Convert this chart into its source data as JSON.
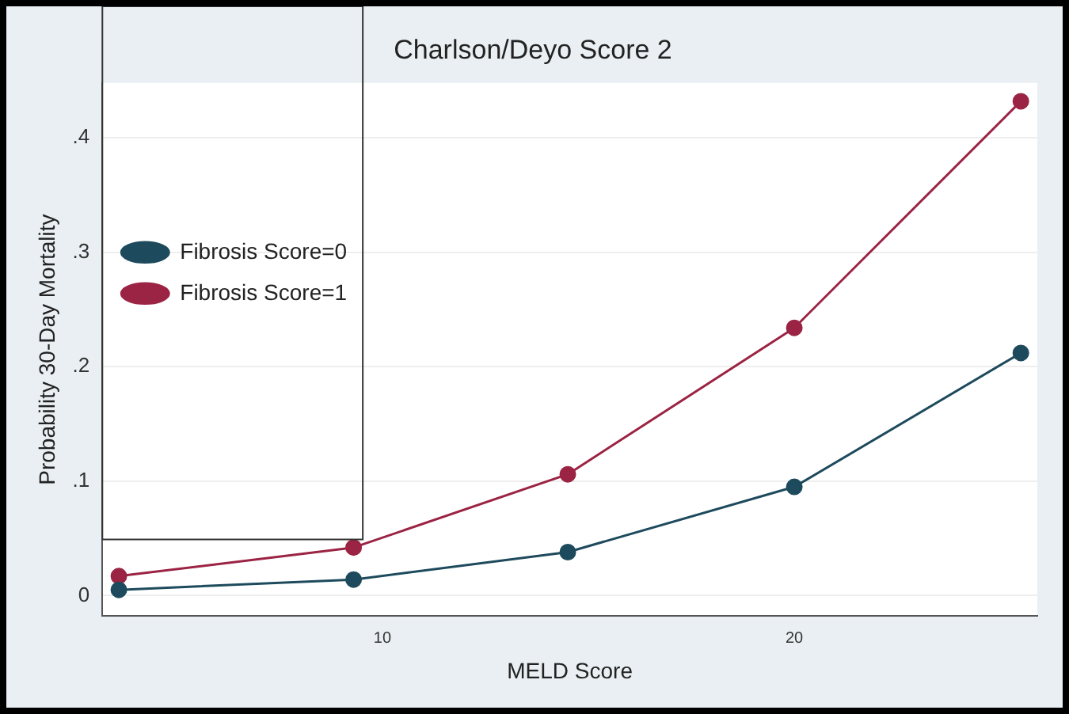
{
  "chart_data": {
    "type": "line",
    "title": "Charlson/Deyo Score 2",
    "xlabel": "MELD Score",
    "ylabel": "Probability 30-Day Mortality",
    "x": [
      3.6,
      9.3,
      14.5,
      20,
      25.5
    ],
    "series": [
      {
        "name": "Fibrosis Score=0",
        "color": "#1d4a5c",
        "values": [
          0.005,
          0.014,
          0.038,
          0.095,
          0.212
        ]
      },
      {
        "name": "Fibrosis Score=1",
        "color": "#9b2343",
        "values": [
          0.017,
          0.042,
          0.106,
          0.234,
          0.432
        ]
      }
    ],
    "xlim": [
      3.2,
      25.9
    ],
    "xticks": [
      10,
      20
    ],
    "ylim": [
      -0.018,
      0.448
    ],
    "yticks": [
      0,
      {
        "value": 0.1,
        "label": ".1"
      },
      {
        "value": 0.2,
        "label": ".2"
      },
      {
        "value": 0.3,
        "label": ".3"
      },
      {
        "value": 0.4,
        "label": ".4"
      }
    ],
    "grid": "y",
    "legend": "left",
    "marker": "circle",
    "line_style": "solid"
  }
}
